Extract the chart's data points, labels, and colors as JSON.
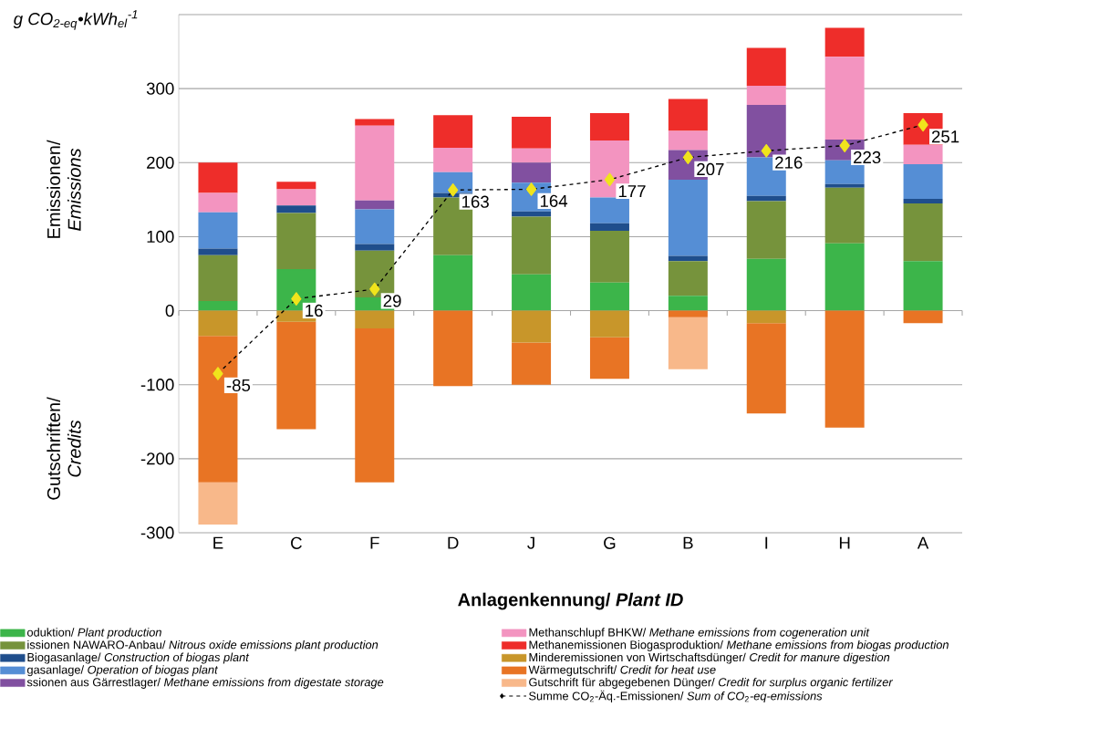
{
  "chart_data": {
    "type": "bar",
    "stacked": true,
    "ylabel": "g CO$_{2-eq}$•kWh$_{el}$$^{-1}$",
    "xlabel": "Anlagenkennung/ *Plant ID*",
    "annotations": [
      "Emissionen/ *Emissions*",
      "Gutschriften/ *Credits*"
    ],
    "categories": [
      "E",
      "C",
      "F",
      "D",
      "J",
      "G",
      "B",
      "I",
      "H",
      "A"
    ],
    "ylim": [
      -300,
      400
    ],
    "yticks": [
      -300,
      -200,
      -100,
      0,
      100,
      200,
      300,
      {
        "value": 400,
        "label": null
      }
    ],
    "grid": "y",
    "legend": "bottom",
    "series": [
      {
        "name": "oduktion/ *Plant production*",
        "color": "#3cb54a",
        "values": [
          13,
          56,
          18,
          75,
          49,
          38,
          20,
          70,
          91,
          67
        ]
      },
      {
        "name": "issionen NAWARO-Anbau/ *Nitrous oxide emissions plant production*",
        "color": "#76933c",
        "values": [
          62,
          76,
          63,
          78,
          78,
          70,
          47,
          78,
          75,
          78
        ]
      },
      {
        "name": "Biogasanlage/ *Construction of biogas plant*",
        "color": "#1f4e8c",
        "values": [
          9,
          10,
          9,
          6,
          7,
          10,
          7,
          7,
          5,
          6
        ]
      },
      {
        "name": "gasanlage/ *Operation of biogas plant*",
        "color": "#558ed5",
        "values": [
          49,
          0,
          47,
          28,
          39,
          35,
          103,
          52,
          32,
          47
        ]
      },
      {
        "name": "ssionen aus Gärrestlager/ *Methane emissions from digestate storage*",
        "color": "#8150a0",
        "values": [
          0,
          0,
          12,
          0,
          27,
          0,
          40,
          71,
          28,
          0
        ]
      },
      {
        "name": "Methanschlupf BHKW/ *Methane emissions from cogeneration unit*",
        "color": "#f394c0",
        "values": [
          26,
          22,
          101,
          33,
          19,
          77,
          26,
          26,
          112,
          26
        ]
      },
      {
        "name": "Methanemissionen Biogasproduktion/ *Methane emissions from biogas production*",
        "color": "#ee2d2a",
        "values": [
          41,
          10,
          9,
          44,
          43,
          37,
          43,
          51,
          39,
          43
        ]
      },
      {
        "name": "Minderemissionen von Wirtschaftsdünger/ *Credit for manure digestion*",
        "color": "#c8962a",
        "values": [
          -34,
          -15,
          -24,
          0,
          -43,
          -36,
          0,
          -17,
          0,
          0
        ]
      },
      {
        "name": "Wärmegutschrift/ *Credit for heat use*",
        "color": "#e87424",
        "values": [
          -198,
          -145,
          -208,
          -102,
          -57,
          -56,
          -9,
          -122,
          -158,
          -17
        ]
      },
      {
        "name": "Gutschrift für abgegebenen Dünger/ *Credit for surplus organic fertilizer*",
        "color": "#f8b88a",
        "values": [
          -57,
          0,
          0,
          0,
          0,
          0,
          -70,
          0,
          0,
          0
        ]
      },
      {
        "name": "Summe CO$_{2}$-Äq.-Emissionen/ *Sum of CO*$_{2}$*-eq-emissions*",
        "type": "line",
        "color": "#f0e41c",
        "marker": "diamond",
        "line_style": "dashed",
        "values": [
          -85,
          16,
          29,
          163,
          164,
          177,
          207,
          216,
          223,
          251
        ],
        "value_labels": [
          "-85",
          "16",
          "29",
          "163",
          "164",
          "177",
          "207",
          "216",
          "223",
          "251"
        ]
      }
    ]
  }
}
